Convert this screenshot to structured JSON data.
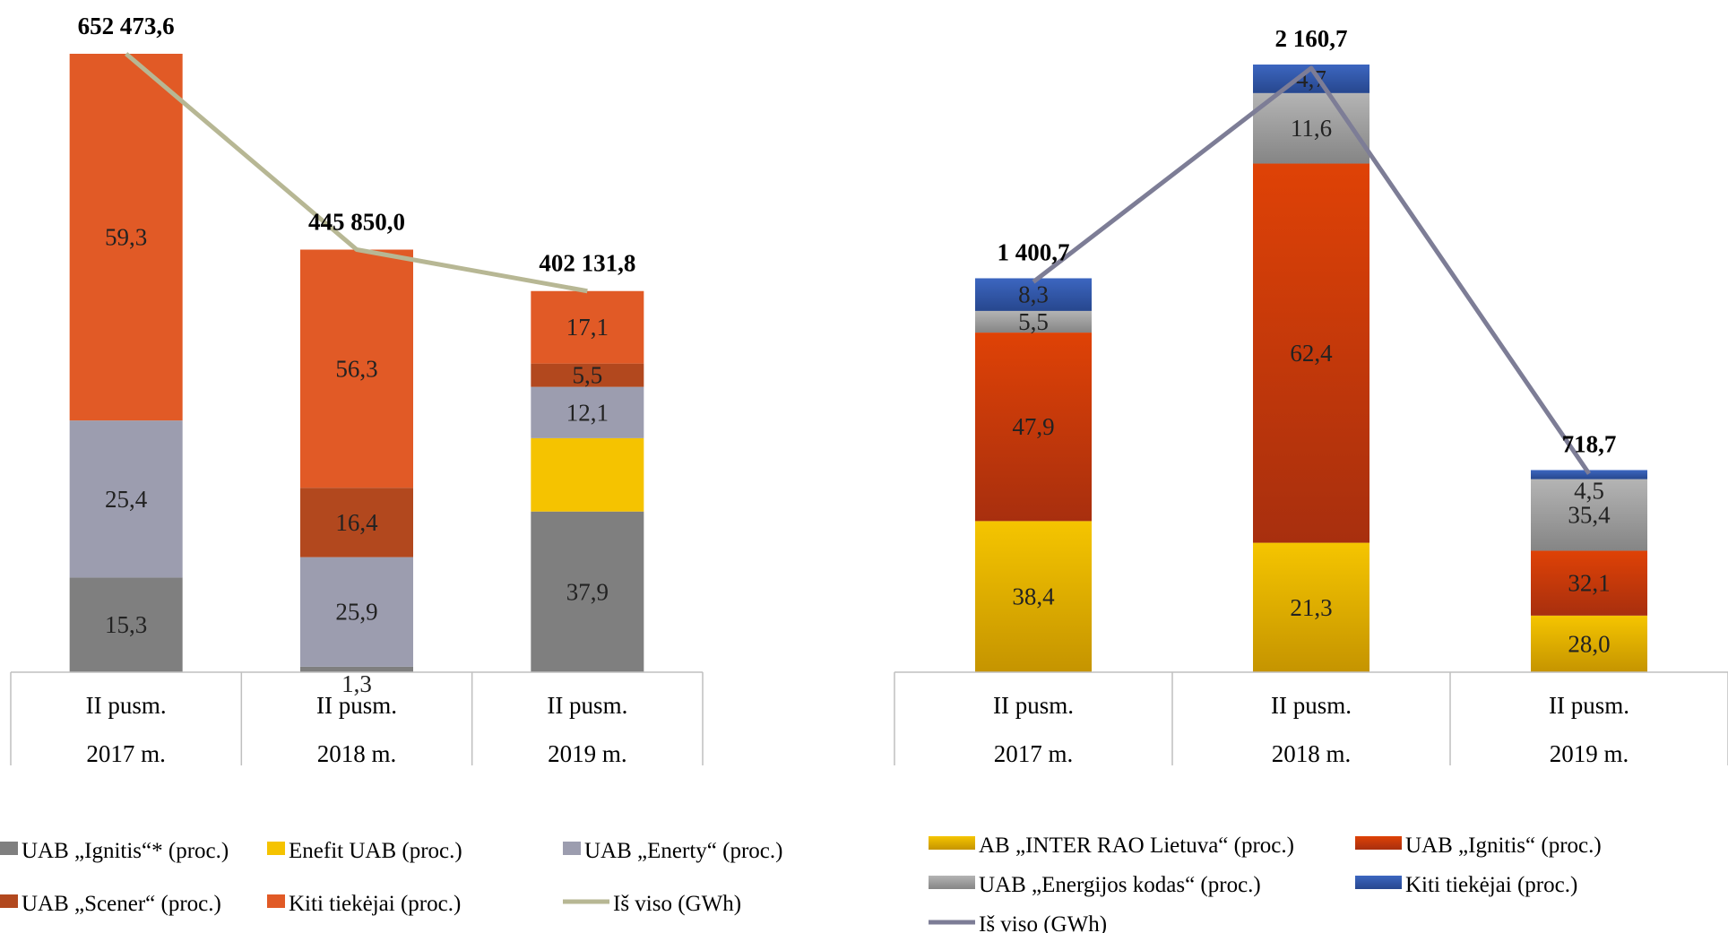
{
  "chart_data": [
    {
      "type": "bar",
      "stacked": true,
      "categories": [
        [
          "II pusm.",
          "2017 m."
        ],
        [
          "II pusm.",
          "2018 m."
        ],
        [
          "II pusm.",
          "2019 m."
        ]
      ],
      "series": [
        {
          "name": "UAB  „Ignitis“*  (proc.)",
          "values": [
            15.3,
            1.3,
            37.9
          ],
          "labels": [
            "15,3",
            "1,3",
            "37,9"
          ],
          "color": "#7f7f7f"
        },
        {
          "name": "Enefit UAB (proc.)",
          "values": [
            0,
            0,
            17.3
          ],
          "labels": [
            "",
            "",
            ""
          ],
          "color": "#f5c300"
        },
        {
          "name": "UAB „Enerty“ (proc.)",
          "values": [
            25.4,
            25.9,
            12.1
          ],
          "labels": [
            "25,4",
            "25,9",
            "12,1"
          ],
          "color": "#9c9daf"
        },
        {
          "name": "UAB „Scener“ (proc.)",
          "values": [
            0,
            16.4,
            5.5
          ],
          "labels": [
            "",
            "16,4",
            "5,5"
          ],
          "color": "#b2481e"
        },
        {
          "name": "Kiti tiekėjai (proc.)",
          "values": [
            59.3,
            56.3,
            17.1
          ],
          "labels": [
            "59,3",
            "56,3",
            "17,1"
          ],
          "color": "#e15a26"
        }
      ],
      "line": {
        "name": "Iš viso (GWh)",
        "values": [
          652473.6,
          445850.0,
          402131.8
        ],
        "labels": [
          "652 473,6",
          "445 850,0",
          "402 131,8"
        ],
        "color": "#b7b794"
      }
    },
    {
      "type": "bar",
      "stacked": true,
      "categories": [
        [
          "II pusm.",
          "2017 m."
        ],
        [
          "II pusm.",
          "2018 m."
        ],
        [
          "II pusm.",
          "2019 m."
        ]
      ],
      "series": [
        {
          "name": "AB „INTER RAO Lietuva“ (proc.)",
          "values": [
            38.4,
            21.3,
            28.0
          ],
          "labels": [
            "38,4",
            "21,3",
            "28,0"
          ],
          "color": "#e8b400",
          "gradient": [
            "#f5c500",
            "#c59400"
          ]
        },
        {
          "name": "UAB  „Ignitis“  (proc.)",
          "values": [
            47.9,
            62.4,
            32.1
          ],
          "labels": [
            "47,9",
            "62,4",
            "32,1"
          ],
          "color": "#d23a08",
          "gradient": [
            "#df4206",
            "#a82f0e"
          ]
        },
        {
          "name": "UAB „Energijos kodas“ (proc.)",
          "values": [
            5.5,
            11.6,
            35.4
          ],
          "labels": [
            "5,5",
            "11,6",
            "35,4"
          ],
          "color": "#a0a0a0",
          "gradient": [
            "#b4b4b4",
            "#858585"
          ]
        },
        {
          "name": "Kiti tiekėjai (proc.)",
          "values": [
            8.3,
            4.7,
            4.5
          ],
          "labels": [
            "8,3",
            "4,7",
            "4,5"
          ],
          "color": "#2f55a6",
          "gradient": [
            "#3c66c0",
            "#27478e"
          ]
        }
      ],
      "line": {
        "name": "Iš viso (GWh)",
        "values": [
          1400.7,
          2160.7,
          718.7
        ],
        "labels": [
          "1 400,7",
          "2 160,7",
          "718,7"
        ],
        "color": "#7d7d96"
      }
    }
  ]
}
